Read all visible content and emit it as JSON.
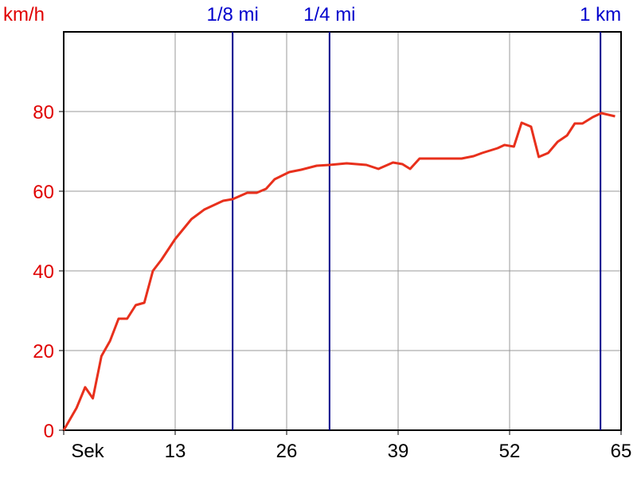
{
  "chart_data": {
    "type": "line",
    "y_label": "km/h",
    "x": [
      0,
      1.5,
      2.5,
      3.4,
      4.4,
      5.4,
      6.4,
      7.4,
      8.4,
      9.4,
      10.4,
      11.4,
      13,
      14.9,
      16.4,
      18.6,
      19.7,
      21.4,
      22.5,
      23.6,
      24.6,
      26.3,
      27.7,
      29.5,
      31,
      33,
      35.3,
      36.7,
      38.4,
      39.5,
      40.4,
      41.5,
      46.4,
      47.8,
      48.8,
      50.6,
      51.4,
      52.5,
      53.4,
      54.5,
      55.4,
      56.5,
      57.6,
      58.7,
      59.6,
      60.5,
      61.7,
      62.7,
      63.9,
      64.3
    ],
    "series": [
      {
        "color": "#e8301c",
        "values": [
          0,
          5.6,
          10.8,
          8,
          18.6,
          22.4,
          28,
          28,
          31.4,
          32,
          40,
          42.8,
          48,
          53,
          55.4,
          57.6,
          58,
          59.6,
          59.6,
          60.6,
          63,
          64.8,
          65.4,
          66.4,
          66.6,
          67,
          66.6,
          65.6,
          67.2,
          66.8,
          65.6,
          68.2,
          68.2,
          68.8,
          69.6,
          70.8,
          71.6,
          71.2,
          77.2,
          76.2,
          68.6,
          69.6,
          72.4,
          74,
          77,
          77,
          78.6,
          79.6,
          79,
          78.8
        ]
      }
    ],
    "xlim": [
      0,
      65
    ],
    "xticks": [
      {
        "value": 0,
        "label": "Sek"
      },
      13,
      26,
      39,
      52,
      65
    ],
    "ylim": [
      0,
      100
    ],
    "yticks": [
      0,
      20,
      40,
      60,
      80
    ],
    "grid": true,
    "markers": [
      {
        "label": "1/8 mi",
        "x": 19.7
      },
      {
        "label": "1/4 mi",
        "x": 31
      },
      {
        "label": "1 km",
        "x": 62.6
      }
    ],
    "marker_color": "#00008b",
    "axis_color": "#e00000"
  }
}
